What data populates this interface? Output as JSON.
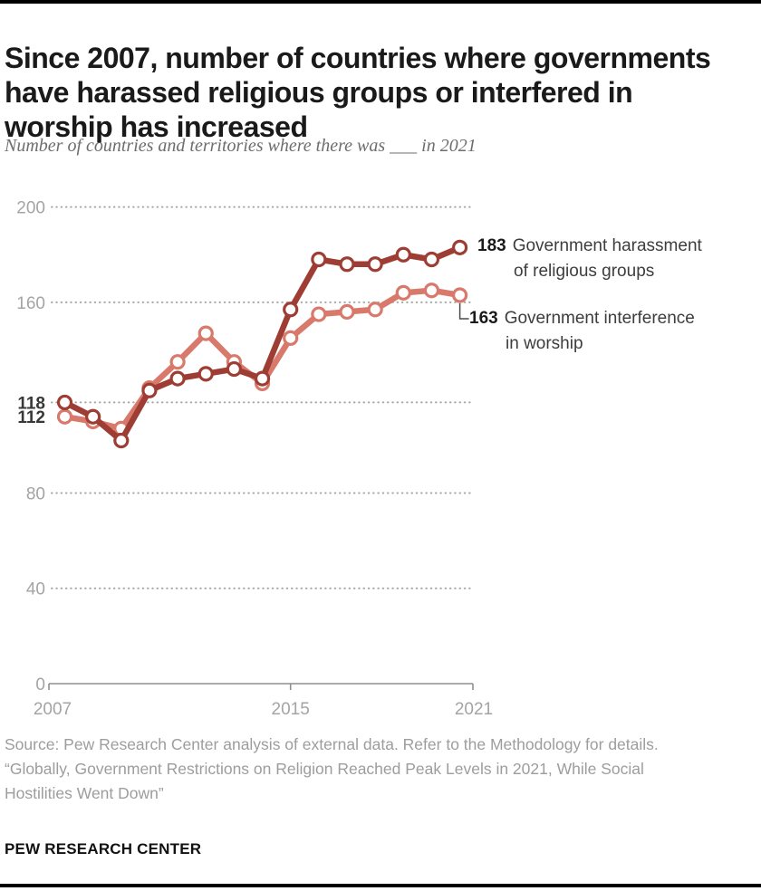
{
  "page": {
    "title_lines": [
      "Since 2007, number of countries where governments",
      "have harassed religious groups or interfered in",
      "worship has increased"
    ],
    "subtitle": "Number of countries and territories where there was ___ in 2021",
    "source_lines": [
      "Source: Pew Research Center analysis of external data. Refer to the Methodology for details.",
      "“Globally, Government Restrictions on Religion Reached Peak Levels in 2021, While Social Hostilities Went Down”"
    ],
    "branding": "PEW RESEARCH CENTER"
  },
  "chart_data": {
    "type": "line",
    "title": "Since 2007, number of countries where governments have harassed religious groups or interfered in worship has increased",
    "subtitle": "Number of countries and territories where there was ___ in 2021",
    "x": [
      2007,
      2008,
      2009,
      2010,
      2011,
      2012,
      2013,
      2014,
      2015,
      2016,
      2017,
      2018,
      2019,
      2020,
      2021
    ],
    "series": [
      {
        "name": "Government harassment of religious groups",
        "color": "#9E3D33",
        "values": [
          118,
          112,
          102,
          123,
          128,
          130,
          132,
          128,
          157,
          178,
          176,
          176,
          180,
          178,
          183
        ],
        "start_label": "118",
        "end_label": "183",
        "legend_line1": "Government harassment",
        "legend_line2": "of religious groups"
      },
      {
        "name": "Government interference in worship",
        "color": "#D8796B",
        "values": [
          112,
          110,
          107,
          124,
          135,
          147,
          135,
          126,
          145,
          155,
          156,
          157,
          164,
          165,
          163
        ],
        "start_label": "112",
        "end_label": "163",
        "legend_line1": "Government interference",
        "legend_line2": "in worship"
      }
    ],
    "y_ticks": [
      200,
      160,
      80,
      40,
      0
    ],
    "ref_line": 118,
    "x_ticks": [
      "2007",
      "2015",
      "2021"
    ],
    "ylim": [
      0,
      200
    ],
    "xlabel": "",
    "ylabel": "",
    "grid": "dotted-horizontal",
    "legend_position": "right-of-line-ends",
    "colors": {
      "dark_red": "#9E3D33",
      "salmon": "#D8796B",
      "grid_gray": "#A6A6A6",
      "axis_text_gray": "#A4A4A4",
      "bold_label_gray": "#383838",
      "source_gray": "#9D9D9D"
    }
  }
}
